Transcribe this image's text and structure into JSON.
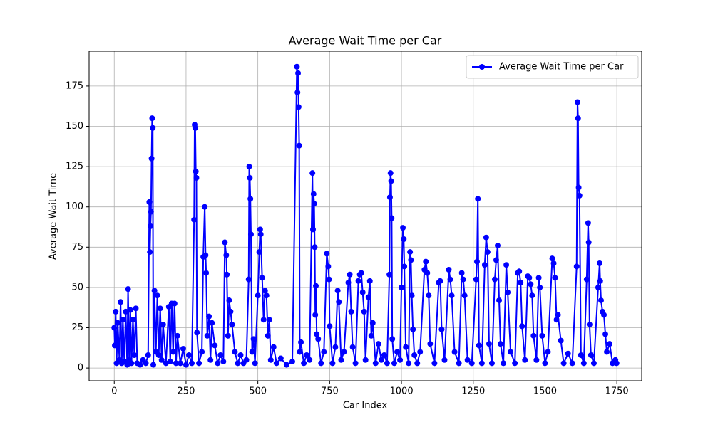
{
  "chart_data": {
    "type": "line",
    "title": "Average Wait Time per Car",
    "xlabel": "Car Index",
    "ylabel": "Average Wait Time",
    "x": [
      0,
      2,
      5,
      8,
      12,
      18,
      22,
      26,
      30,
      35,
      40,
      45,
      48,
      52,
      56,
      60,
      65,
      70,
      75,
      80,
      90,
      100,
      110,
      118,
      122,
      124,
      126,
      128,
      130,
      132,
      134,
      136,
      140,
      145,
      150,
      155,
      160,
      165,
      170,
      180,
      190,
      195,
      200,
      205,
      210,
      215,
      220,
      230,
      240,
      250,
      260,
      270,
      278,
      280,
      282,
      284,
      286,
      288,
      295,
      305,
      310,
      315,
      318,
      320,
      324,
      330,
      335,
      340,
      350,
      360,
      370,
      380,
      385,
      390,
      392,
      396,
      400,
      405,
      410,
      420,
      430,
      440,
      450,
      460,
      468,
      470,
      472,
      474,
      476,
      480,
      485,
      490,
      500,
      505,
      508,
      510,
      515,
      520,
      525,
      530,
      535,
      540,
      545,
      555,
      565,
      580,
      600,
      620,
      636,
      638,
      640,
      642,
      644,
      646,
      650,
      660,
      670,
      680,
      690,
      692,
      694,
      696,
      698,
      700,
      702,
      705,
      710,
      720,
      730,
      740,
      745,
      748,
      750,
      760,
      770,
      778,
      782,
      790,
      800,
      815,
      820,
      825,
      830,
      840,
      850,
      855,
      860,
      865,
      870,
      875,
      885,
      890,
      895,
      900,
      910,
      920,
      930,
      940,
      950,
      958,
      960,
      962,
      964,
      966,
      968,
      975,
      985,
      995,
      1000,
      1005,
      1008,
      1010,
      1015,
      1025,
      1030,
      1033,
      1036,
      1040,
      1045,
      1055,
      1065,
      1080,
      1085,
      1090,
      1095,
      1100,
      1115,
      1130,
      1135,
      1140,
      1150,
      1165,
      1170,
      1175,
      1185,
      1200,
      1210,
      1215,
      1220,
      1230,
      1245,
      1260,
      1263,
      1266,
      1270,
      1280,
      1290,
      1295,
      1300,
      1305,
      1315,
      1325,
      1330,
      1335,
      1340,
      1345,
      1355,
      1365,
      1370,
      1380,
      1395,
      1405,
      1410,
      1415,
      1420,
      1430,
      1440,
      1445,
      1450,
      1455,
      1460,
      1470,
      1478,
      1482,
      1490,
      1500,
      1510,
      1525,
      1530,
      1535,
      1540,
      1545,
      1555,
      1565,
      1580,
      1595,
      1610,
      1613,
      1615,
      1617,
      1620,
      1625,
      1635,
      1645,
      1650,
      1652,
      1655,
      1660,
      1670,
      1685,
      1690,
      1692,
      1695,
      1700,
      1705,
      1710,
      1715,
      1725,
      1735,
      1745,
      1749
    ],
    "series": [
      {
        "name": "Average Wait Time per Car",
        "color": "#0000ff",
        "values": [
          25,
          14,
          35,
          3,
          28,
          5,
          41,
          3,
          30,
          4,
          35,
          2,
          49,
          5,
          36,
          3,
          30,
          8,
          37,
          3,
          2,
          5,
          3,
          8,
          103,
          72,
          88,
          97,
          130,
          155,
          149,
          2,
          48,
          10,
          45,
          8,
          37,
          5,
          27,
          3,
          38,
          4,
          40,
          10,
          40,
          3,
          20,
          3,
          12,
          2,
          8,
          3,
          92,
          151,
          149,
          122,
          118,
          22,
          3,
          10,
          69,
          100,
          70,
          59,
          20,
          32,
          5,
          28,
          14,
          3,
          8,
          4,
          78,
          70,
          58,
          20,
          42,
          35,
          27,
          10,
          3,
          8,
          3,
          5,
          55,
          125,
          118,
          105,
          83,
          10,
          18,
          3,
          45,
          72,
          86,
          83,
          56,
          30,
          48,
          45,
          20,
          30,
          5,
          13,
          3,
          6,
          2,
          4,
          187,
          171,
          183,
          162,
          138,
          10,
          16,
          3,
          8,
          5,
          121,
          86,
          108,
          102,
          75,
          33,
          51,
          21,
          18,
          3,
          10,
          71,
          63,
          55,
          26,
          3,
          13,
          48,
          41,
          5,
          10,
          53,
          58,
          35,
          13,
          3,
          54,
          58,
          59,
          47,
          35,
          5,
          44,
          54,
          20,
          28,
          3,
          15,
          5,
          8,
          3,
          58,
          106,
          121,
          116,
          93,
          18,
          3,
          10,
          5,
          50,
          87,
          80,
          63,
          13,
          3,
          72,
          67,
          45,
          24,
          8,
          3,
          10,
          61,
          66,
          59,
          45,
          15,
          3,
          53,
          54,
          24,
          5,
          61,
          55,
          45,
          10,
          3,
          59,
          55,
          45,
          5,
          3,
          55,
          66,
          105,
          14,
          3,
          64,
          81,
          72,
          15,
          3,
          55,
          67,
          76,
          42,
          15,
          3,
          64,
          47,
          10,
          3,
          59,
          60,
          53,
          26,
          5,
          57,
          56,
          52,
          45,
          20,
          5,
          56,
          50,
          20,
          3,
          10,
          68,
          65,
          56,
          30,
          33,
          17,
          3,
          9,
          3,
          63,
          165,
          155,
          112,
          107,
          8,
          3,
          55,
          90,
          78,
          27,
          8,
          3,
          50,
          65,
          54,
          42,
          35,
          33,
          21,
          10,
          15,
          3,
          5,
          3
        ]
      }
    ],
    "xlim": [
      -87.5,
      1836.5
    ],
    "ylim": [
      -7.9,
      196.6
    ],
    "xticks": [
      0,
      250,
      500,
      750,
      1000,
      1250,
      1500,
      1750
    ],
    "yticks": [
      0,
      25,
      50,
      75,
      100,
      125,
      150,
      175
    ],
    "grid": true,
    "legend": "upper right"
  }
}
